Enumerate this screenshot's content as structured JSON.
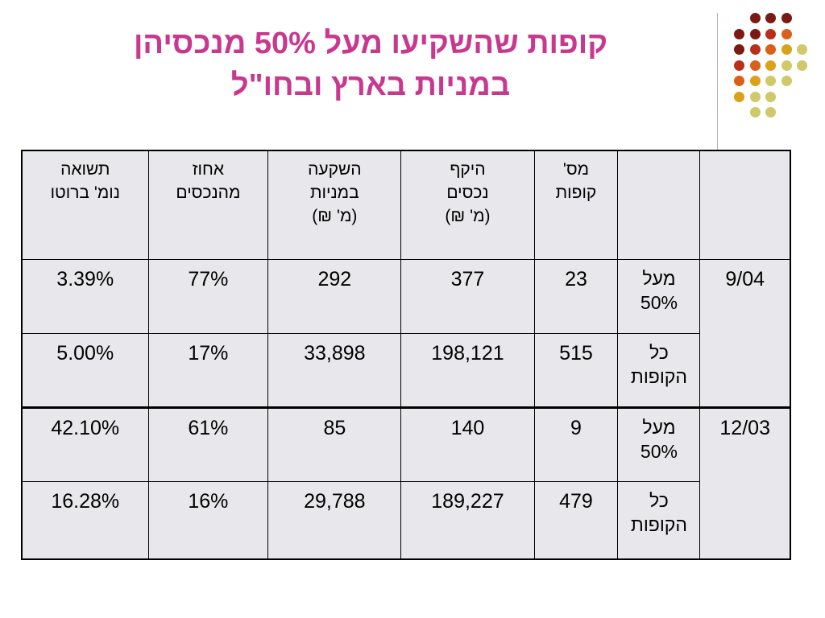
{
  "title": {
    "line1": "קופות שהשקיעו מעל 50% מנכסיהן",
    "line2": "במניות בארץ ובחו\"ל"
  },
  "colors": {
    "title": "#c8388f",
    "cell_bg": "#e8e8ec",
    "dot_dark": "#7a1a12",
    "dot_red": "#b8301a",
    "dot_orange": "#d9601a",
    "dot_gold": "#d9a21a",
    "dot_olive": "#cfc96a"
  },
  "table": {
    "headers": {
      "period": "",
      "group": "",
      "num_funds": "מס'\nקופות",
      "assets": "היקף\nנכסים\n(מ' ₪)",
      "stock_investment": "השקעה\nבמניות\n(מ' ₪)",
      "asset_share": "אחוז\nמהנכסים",
      "return": "תשואה\nנומ' ברוטו"
    },
    "groups": [
      {
        "period": "9/04",
        "rows": [
          {
            "label": "מעל\n50%",
            "num_funds": "23",
            "assets": "377",
            "stock_investment": "292",
            "asset_share": "77%",
            "return": "3.39%"
          },
          {
            "label": "כל\nהקופות",
            "num_funds": "515",
            "assets": "198,121",
            "stock_investment": "33,898",
            "asset_share": "17%",
            "return": "5.00%"
          }
        ]
      },
      {
        "period": "12/03",
        "rows": [
          {
            "label": "מעל\n50%",
            "num_funds": "9",
            "assets": "140",
            "stock_investment": "85",
            "asset_share": "61%",
            "return": "42.10%"
          },
          {
            "label": "כל\nהקופות",
            "num_funds": "479",
            "assets": "189,227",
            "stock_investment": "29,788",
            "asset_share": "16%",
            "return": "16.28%"
          }
        ]
      }
    ]
  }
}
